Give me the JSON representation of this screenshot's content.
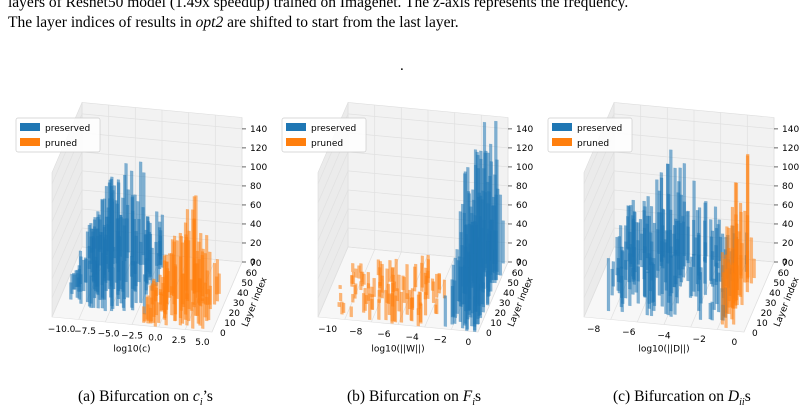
{
  "caption": {
    "line1": "layers of Resnet50 model (1.49x speedup) trained on Imagenet. The z-axis represents the frequency.",
    "line2_a": "The layer indices of results in ",
    "line2_opt": "opt2",
    "line2_b": " are shifted to start from the last layer.",
    "dot": "."
  },
  "legend": {
    "preserved": "preserved",
    "pruned": "pruned"
  },
  "colors": {
    "preserved": "#1f77b4",
    "pruned": "#ff7f0e"
  },
  "subcaptions": [
    {
      "text": "(a) Bifurcation on ",
      "math": "c",
      "sub": "i",
      "tail": "’s"
    },
    {
      "text": "(b) Bifurcation on ",
      "math": "F",
      "sub": "i",
      "tail": "s"
    },
    {
      "text": "(c) Bifurcation on ",
      "math": "D",
      "sub": "ii",
      "tail": "s"
    }
  ],
  "chart_data": [
    {
      "type": "bar",
      "xlabel": "log10(c)",
      "ylabel": "Layer index",
      "x_ticks": [
        "−10.0",
        "−7.5",
        "−5.0",
        "−2.5",
        "0.0",
        "2.5",
        "5.0"
      ],
      "y_ticks": [
        "0",
        "10",
        "20",
        "30",
        "40",
        "50",
        "60",
        "70"
      ],
      "z_ticks": [
        "0",
        "20",
        "40",
        "60",
        "80",
        "100",
        "120",
        "140"
      ],
      "series": [
        {
          "name": "preserved",
          "x_range": [
            -10.0,
            0.5
          ]
        },
        {
          "name": "pruned",
          "x_range": [
            0.0,
            6.0
          ]
        }
      ]
    },
    {
      "type": "bar",
      "xlabel": "log10(||W||)",
      "ylabel": "Layer index",
      "x_ticks": [
        "−10",
        "−8",
        "−6",
        "−4",
        "−2",
        "0"
      ],
      "y_ticks": [
        "0",
        "10",
        "20",
        "30",
        "40",
        "50",
        "60",
        "70"
      ],
      "z_ticks": [
        "0",
        "20",
        "40",
        "60",
        "80",
        "100",
        "120",
        "140"
      ],
      "series": [
        {
          "name": "preserved",
          "x_range": [
            -2.0,
            0.5
          ]
        },
        {
          "name": "pruned",
          "x_range": [
            -10.0,
            -1.0
          ]
        }
      ]
    },
    {
      "type": "bar",
      "xlabel": "log10(||D||)",
      "ylabel": "Layer index",
      "x_ticks": [
        "−8",
        "−6",
        "−4",
        "−2",
        "0"
      ],
      "y_ticks": [
        "0",
        "10",
        "20",
        "30",
        "40",
        "50",
        "60",
        "70"
      ],
      "z_ticks": [
        "0",
        "20",
        "40",
        "60",
        "80",
        "100",
        "120",
        "140"
      ],
      "series": [
        {
          "name": "preserved",
          "x_range": [
            -9.0,
            0.0
          ]
        },
        {
          "name": "pruned",
          "x_range": [
            -0.5,
            0.5
          ]
        }
      ]
    }
  ]
}
